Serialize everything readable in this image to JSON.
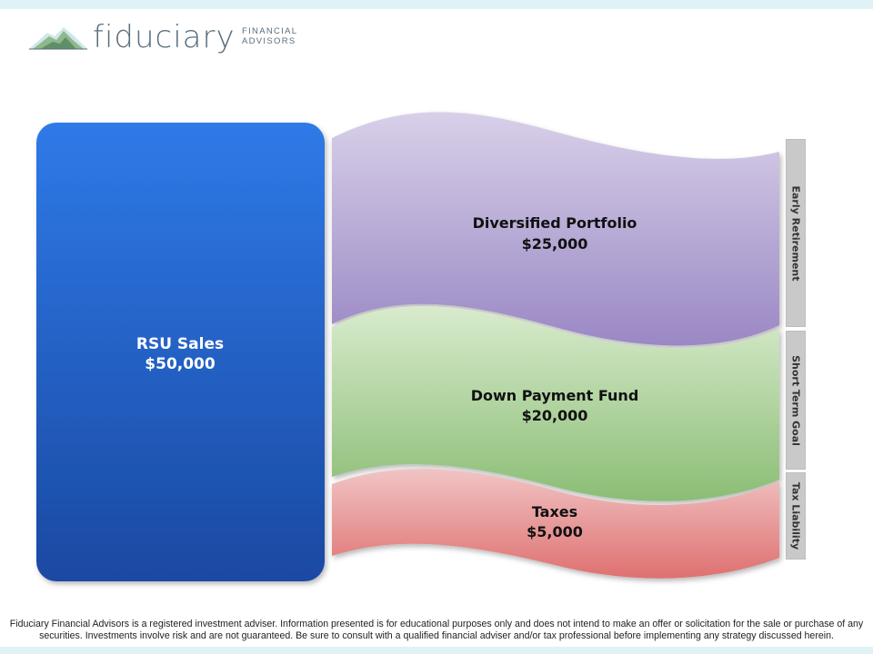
{
  "logo": {
    "wordmark": "fiduciary",
    "sub_line1": "FINANCIAL",
    "sub_line2": "ADVISORS",
    "icon": "mountain-icon"
  },
  "colors": {
    "band_top": "#dff3f6",
    "source_top": "#2f7ae8",
    "source_bottom": "#1a49a2",
    "portfolio_top": "#d8d0e9",
    "portfolio_bottom": "#9a88c4",
    "downpayment_top": "#d8ebcd",
    "downpayment_bottom": "#8bbd75",
    "taxes_top": "#f1c4c4",
    "taxes_bottom": "#df7070",
    "side_label_bg": "#c9c9c9"
  },
  "diagram": {
    "source": {
      "label": "RSU Sales",
      "amount": "$50,000"
    },
    "flows": [
      {
        "label": "Diversified Portfolio",
        "amount": "$25,000",
        "category": "Early Retirement"
      },
      {
        "label": "Down Payment Fund",
        "amount": "$20,000",
        "category": "Short Term Goal"
      },
      {
        "label": "Taxes",
        "amount": "$5,000",
        "category": "Tax Liability"
      }
    ]
  },
  "disclaimer": "Fiduciary Financial Advisors is a registered investment adviser. Information presented is for educational purposes only and does not intend to make an offer or solicitation for the sale or purchase of any securities. Investments involve risk and are not guaranteed. Be sure to consult with a qualified financial adviser and/or tax professional before implementing any strategy discussed herein."
}
